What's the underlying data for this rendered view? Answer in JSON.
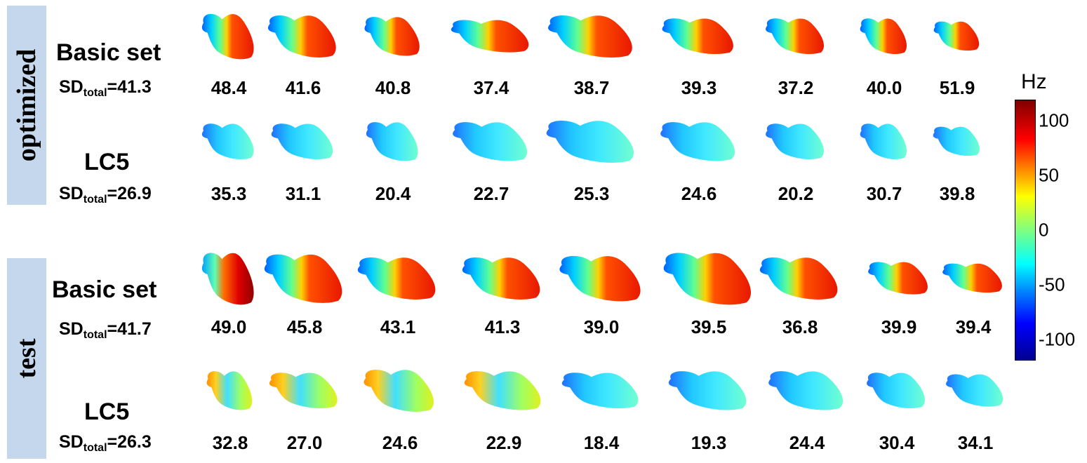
{
  "groups": [
    {
      "label": "optimized",
      "rows": [
        {
          "name": "Basic set",
          "sd_prefix": "SD",
          "sd_sub": "total",
          "sd_value": "=41.3",
          "values": [
            "48.4",
            "41.6",
            "40.8",
            "37.4",
            "38.7",
            "39.3",
            "37.2",
            "40.0",
            "51.9"
          ]
        },
        {
          "name": "LC5",
          "sd_prefix": "SD",
          "sd_sub": "total",
          "sd_value": "=26.9",
          "values": [
            "35.3",
            "31.1",
            "20.4",
            "22.7",
            "25.3",
            "24.6",
            "20.2",
            "30.7",
            "39.8"
          ]
        }
      ]
    },
    {
      "label": "test",
      "rows": [
        {
          "name": "Basic set",
          "sd_prefix": "SD",
          "sd_sub": "total",
          "sd_value": "=41.7",
          "values": [
            "49.0",
            "45.8",
            "43.1",
            "41.3",
            "39.0",
            "39.5",
            "36.8",
            "39.9",
            "39.4"
          ]
        },
        {
          "name": "LC5",
          "sd_prefix": "SD",
          "sd_sub": "total",
          "sd_value": "=26.3",
          "values": [
            "32.8",
            "27.0",
            "24.6",
            "22.9",
            "18.4",
            "19.3",
            "24.4",
            "30.4",
            "34.1"
          ]
        }
      ]
    }
  ],
  "colorbar": {
    "unit": "Hz",
    "ticks": [
      "100",
      "50",
      "0",
      "-50",
      "-100"
    ],
    "range": [
      -120,
      120
    ]
  }
}
